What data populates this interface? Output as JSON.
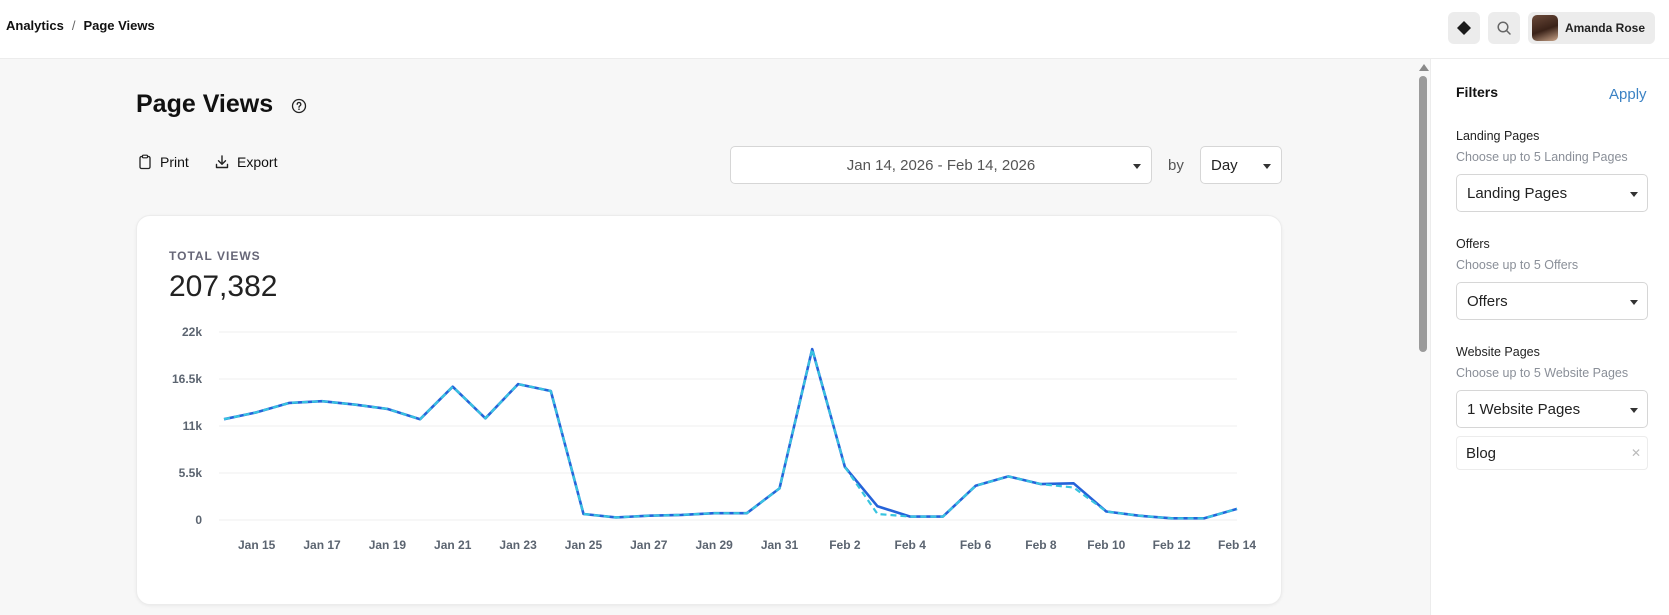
{
  "header": {
    "breadcrumb": [
      "Analytics",
      "Page Views"
    ],
    "user_name": "Amanda Rose",
    "icons": [
      "diamond-icon",
      "search-icon"
    ]
  },
  "page": {
    "title": "Page Views",
    "print_label": "Print",
    "export_label": "Export",
    "date_range": "Jan 14, 2026 - Feb 14, 2026",
    "by_label": "by",
    "granularity": "Day"
  },
  "summary": {
    "label": "TOTAL VIEWS",
    "value": "207,382"
  },
  "chart_data": {
    "type": "line",
    "yticks": [
      "22k",
      "16.5k",
      "11k",
      "5.5k",
      "0"
    ],
    "ylim": [
      0,
      22000
    ],
    "x_tick_labels": [
      "Jan 15",
      "Jan 17",
      "Jan 19",
      "Jan 21",
      "Jan 23",
      "Jan 25",
      "Jan 27",
      "Jan 29",
      "Jan 31",
      "Feb 2",
      "Feb 4",
      "Feb 6",
      "Feb 8",
      "Feb 10",
      "Feb 12",
      "Feb 14"
    ],
    "x": [
      "Jan 14",
      "Jan 15",
      "Jan 16",
      "Jan 17",
      "Jan 18",
      "Jan 19",
      "Jan 20",
      "Jan 21",
      "Jan 22",
      "Jan 23",
      "Jan 24",
      "Jan 25",
      "Jan 26",
      "Jan 27",
      "Jan 28",
      "Jan 29",
      "Jan 30",
      "Jan 31",
      "Feb 1",
      "Feb 2",
      "Feb 3",
      "Feb 4",
      "Feb 5",
      "Feb 6",
      "Feb 7",
      "Feb 8",
      "Feb 9",
      "Feb 10",
      "Feb 11",
      "Feb 12",
      "Feb 13",
      "Feb 14"
    ],
    "series": [
      {
        "color": "#2563d9",
        "style": "solid",
        "values": [
          11800,
          12600,
          13700,
          13900,
          13500,
          13000,
          11800,
          15600,
          11900,
          15900,
          15100,
          700,
          300,
          500,
          600,
          800,
          800,
          3700,
          20000,
          6200,
          1600,
          400,
          400,
          4000,
          5100,
          4200,
          4300,
          1000,
          500,
          200,
          200,
          1300
        ]
      },
      {
        "color": "#38c4e0",
        "style": "dashed",
        "values": [
          11800,
          12600,
          13700,
          13900,
          13500,
          13000,
          11800,
          15600,
          11900,
          15900,
          15100,
          700,
          300,
          500,
          600,
          800,
          800,
          3700,
          20000,
          6200,
          700,
          400,
          400,
          4000,
          5100,
          4200,
          3800,
          1000,
          500,
          200,
          200,
          1300
        ]
      }
    ],
    "grid": true
  },
  "filters": {
    "title": "Filters",
    "apply_label": "Apply",
    "landing": {
      "label": "Landing Pages",
      "hint": "Choose up to 5 Landing Pages",
      "value": "Landing Pages"
    },
    "offers": {
      "label": "Offers",
      "hint": "Choose up to 5 Offers",
      "value": "Offers"
    },
    "website": {
      "label": "Website Pages",
      "hint": "Choose up to 5 Website Pages",
      "value": "1 Website Pages"
    },
    "selected_chip": "Blog"
  }
}
